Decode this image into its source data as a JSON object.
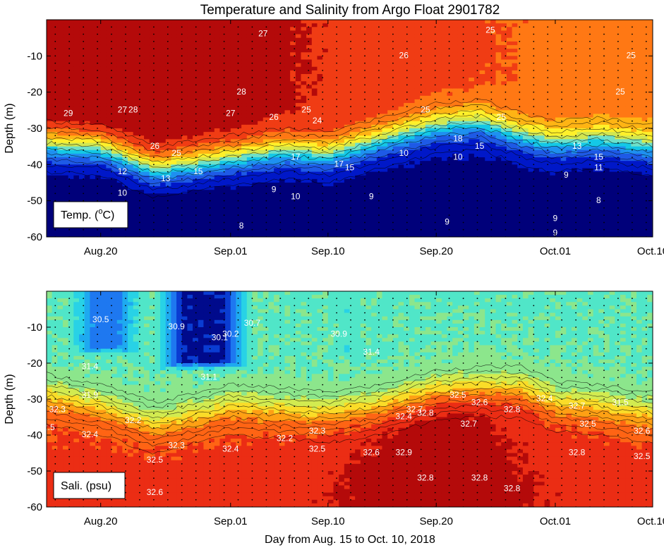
{
  "chart_data": {
    "title": "Temperature and Salinity from Argo Float 2901782",
    "xlabel": "Day from Aug. 15 to Oct. 10, 2018",
    "type": "heatmap",
    "x_range": [
      "2018-08-15",
      "2018-10-10"
    ],
    "x_ticks": [
      {
        "date": "2018-08-20",
        "label": "Aug.20"
      },
      {
        "date": "2018-09-01",
        "label": "Sep.01"
      },
      {
        "date": "2018-09-10",
        "label": "Sep.10"
      },
      {
        "date": "2018-09-20",
        "label": "Sep.20"
      },
      {
        "date": "2018-10-01",
        "label": "Oct.01"
      },
      {
        "date": "2018-10-10",
        "label": "Oct.10"
      }
    ],
    "panels": [
      {
        "id": "temperature",
        "panel_label": "Temp. (oC)",
        "panel_label_parts": [
          "Temp. (",
          "o",
          "C)"
        ],
        "ylabel": "Depth (m)",
        "ylim": [
          -60,
          0
        ],
        "y_ticks": [
          -10,
          -20,
          -30,
          -40,
          -50,
          -60
        ],
        "y_tick_labels": [
          "-10",
          "-20",
          "-30",
          "-40",
          "-50",
          "-60"
        ],
        "colors": [
          "#00007a",
          "#0018c8",
          "#1e5ae6",
          "#1e90f0",
          "#14c8e6",
          "#6ee0c8",
          "#d2e650",
          "#fff02a",
          "#ffb414",
          "#ff7814",
          "#f03c14",
          "#b40a0a"
        ],
        "value_range": [
          8,
          29.5
        ],
        "thermocline_depth": [
          {
            "date": "2018-08-15",
            "depth": -34
          },
          {
            "date": "2018-08-20",
            "depth": -35
          },
          {
            "date": "2018-08-25",
            "depth": -41
          },
          {
            "date": "2018-09-01",
            "depth": -38
          },
          {
            "date": "2018-09-06",
            "depth": -36
          },
          {
            "date": "2018-09-10",
            "depth": -37
          },
          {
            "date": "2018-09-15",
            "depth": -33
          },
          {
            "date": "2018-09-20",
            "depth": -29
          },
          {
            "date": "2018-09-24",
            "depth": -28
          },
          {
            "date": "2018-09-28",
            "depth": -32
          },
          {
            "date": "2018-10-01",
            "depth": -34
          },
          {
            "date": "2018-10-05",
            "depth": -33
          },
          {
            "date": "2018-10-10",
            "depth": -35
          }
        ],
        "surface_temperature": [
          {
            "date": "2018-08-15",
            "value": 29.5
          },
          {
            "date": "2018-08-25",
            "value": 29
          },
          {
            "date": "2018-09-01",
            "value": 28.5
          },
          {
            "date": "2018-09-10",
            "value": 27.5
          },
          {
            "date": "2018-09-20",
            "value": 26.5
          },
          {
            "date": "2018-10-01",
            "value": 25.5
          },
          {
            "date": "2018-10-10",
            "value": 25
          }
        ],
        "contour_labels": [
          {
            "date": "2018-09-04",
            "depth": -4,
            "text": "27"
          },
          {
            "date": "2018-09-17",
            "depth": -10,
            "text": "26"
          },
          {
            "date": "2018-09-25",
            "depth": -3,
            "text": "25"
          },
          {
            "date": "2018-10-08",
            "depth": -10,
            "text": "25"
          },
          {
            "date": "2018-10-07",
            "depth": -20,
            "text": "25"
          },
          {
            "date": "2018-08-17",
            "depth": -26,
            "text": "29"
          },
          {
            "date": "2018-08-22",
            "depth": -25,
            "text": "27"
          },
          {
            "date": "2018-08-23",
            "depth": -25,
            "text": "28"
          },
          {
            "date": "2018-09-02",
            "depth": -20,
            "text": "28"
          },
          {
            "date": "2018-09-01",
            "depth": -26,
            "text": "27"
          },
          {
            "date": "2018-09-05",
            "depth": -27,
            "text": "26"
          },
          {
            "date": "2018-09-08",
            "depth": -25,
            "text": "25"
          },
          {
            "date": "2018-09-09",
            "depth": -28,
            "text": "24"
          },
          {
            "date": "2018-09-19",
            "depth": -25,
            "text": "25"
          },
          {
            "date": "2018-09-26",
            "depth": -27,
            "text": "25"
          },
          {
            "date": "2018-08-25",
            "depth": -35,
            "text": "26"
          },
          {
            "date": "2018-08-27",
            "depth": -37,
            "text": "25"
          },
          {
            "date": "2018-08-29",
            "depth": -42,
            "text": "15"
          },
          {
            "date": "2018-08-26",
            "depth": -44,
            "text": "13"
          },
          {
            "date": "2018-08-22",
            "depth": -42,
            "text": "12"
          },
          {
            "date": "2018-08-22",
            "depth": -48,
            "text": "10"
          },
          {
            "date": "2018-08-20",
            "depth": -52,
            "text": "9"
          },
          {
            "date": "2018-08-21",
            "depth": -54,
            "text": "8"
          },
          {
            "date": "2018-09-07",
            "depth": -38,
            "text": "17"
          },
          {
            "date": "2018-09-11",
            "depth": -40,
            "text": "17"
          },
          {
            "date": "2018-09-12",
            "depth": -41,
            "text": "15"
          },
          {
            "date": "2018-09-17",
            "depth": -37,
            "text": "10"
          },
          {
            "date": "2018-09-05",
            "depth": -47,
            "text": "9"
          },
          {
            "date": "2018-09-07",
            "depth": -49,
            "text": "10"
          },
          {
            "date": "2018-09-14",
            "depth": -49,
            "text": "9"
          },
          {
            "date": "2018-09-02",
            "depth": -57,
            "text": "8"
          },
          {
            "date": "2018-09-22",
            "depth": -33,
            "text": "18"
          },
          {
            "date": "2018-09-24",
            "depth": -35,
            "text": "15"
          },
          {
            "date": "2018-09-22",
            "depth": -38,
            "text": "10"
          },
          {
            "date": "2018-09-21",
            "depth": -56,
            "text": "9"
          },
          {
            "date": "2018-10-03",
            "depth": -35,
            "text": "13"
          },
          {
            "date": "2018-10-05",
            "depth": -38,
            "text": "15"
          },
          {
            "date": "2018-10-05",
            "depth": -41,
            "text": "11"
          },
          {
            "date": "2018-10-02",
            "depth": -43,
            "text": "9"
          },
          {
            "date": "2018-10-05",
            "depth": -50,
            "text": "8"
          },
          {
            "date": "2018-10-01",
            "depth": -55,
            "text": "9"
          },
          {
            "date": "2018-10-01",
            "depth": -59,
            "text": "9"
          }
        ]
      },
      {
        "id": "salinity",
        "panel_label": "Sali. (psu)",
        "ylabel": "Depth (m)",
        "ylim": [
          -60,
          0
        ],
        "y_ticks": [
          -10,
          -20,
          -30,
          -40,
          -50,
          -60
        ],
        "y_tick_labels": [
          "-10",
          "-20",
          "-30",
          "-40",
          "-50",
          "-60"
        ],
        "colors": [
          "#000a8c",
          "#0a3cd2",
          "#1e78f0",
          "#1eaaf0",
          "#28d2e6",
          "#50e6c8",
          "#8ce68c",
          "#d2eb50",
          "#fadc28",
          "#ffa014",
          "#ff6414",
          "#eb2d14",
          "#b40a0a"
        ],
        "value_range": [
          29.8,
          33.0
        ],
        "halocline_depth": [
          {
            "date": "2018-08-15",
            "depth": -29
          },
          {
            "date": "2018-08-20",
            "depth": -32
          },
          {
            "date": "2018-08-25",
            "depth": -37
          },
          {
            "date": "2018-09-01",
            "depth": -32
          },
          {
            "date": "2018-09-06",
            "depth": -33
          },
          {
            "date": "2018-09-10",
            "depth": -34
          },
          {
            "date": "2018-09-15",
            "depth": -32
          },
          {
            "date": "2018-09-20",
            "depth": -28
          },
          {
            "date": "2018-09-24",
            "depth": -27
          },
          {
            "date": "2018-09-28",
            "depth": -27
          },
          {
            "date": "2018-10-01",
            "depth": -31
          },
          {
            "date": "2018-10-05",
            "depth": -32
          },
          {
            "date": "2018-10-10",
            "depth": -34
          }
        ],
        "fresh_lenses": [
          {
            "date_start": "2018-08-17",
            "date_end": "2018-08-24",
            "depth_bottom": -18,
            "value": 30.4
          },
          {
            "date_start": "2018-08-25",
            "date_end": "2018-09-03",
            "depth_bottom": -22,
            "value": 30.0
          },
          {
            "date_start": "2018-09-11",
            "date_end": "2018-09-13",
            "depth_bottom": -18,
            "value": 30.7
          }
        ],
        "contour_labels": [
          {
            "date": "2018-08-20",
            "depth": -8,
            "text": "30.5"
          },
          {
            "date": "2018-08-27",
            "depth": -10,
            "text": "30.9"
          },
          {
            "date": "2018-08-31",
            "depth": -13,
            "text": "30.1"
          },
          {
            "date": "2018-09-01",
            "depth": -12,
            "text": "30.2"
          },
          {
            "date": "2018-09-03",
            "depth": -9,
            "text": "30.7"
          },
          {
            "date": "2018-09-11",
            "depth": -12,
            "text": "30.9"
          },
          {
            "date": "2018-09-14",
            "depth": -17,
            "text": "31.4"
          },
          {
            "date": "2018-08-19",
            "depth": -21,
            "text": "31.4"
          },
          {
            "date": "2018-08-30",
            "depth": -24,
            "text": "31.1"
          },
          {
            "date": "2018-08-19",
            "depth": -29,
            "text": "31.9"
          },
          {
            "date": "2018-08-16",
            "depth": -33,
            "text": "32.3"
          },
          {
            "date": "2018-08-15",
            "depth": -38,
            "text": "32.5"
          },
          {
            "date": "2018-08-19",
            "depth": -40,
            "text": "32.4"
          },
          {
            "date": "2018-08-23",
            "depth": -36,
            "text": "32.2"
          },
          {
            "date": "2018-08-27",
            "depth": -43,
            "text": "32.3"
          },
          {
            "date": "2018-08-25",
            "depth": -47,
            "text": "32.5"
          },
          {
            "date": "2018-09-01",
            "depth": -44,
            "text": "32.4"
          },
          {
            "date": "2018-09-06",
            "depth": -41,
            "text": "32.2"
          },
          {
            "date": "2018-09-09",
            "depth": -39,
            "text": "32.3"
          },
          {
            "date": "2018-09-09",
            "depth": -44,
            "text": "32.5"
          },
          {
            "date": "2018-09-14",
            "depth": -45,
            "text": "32.6"
          },
          {
            "date": "2018-09-17",
            "depth": -35,
            "text": "32.4"
          },
          {
            "date": "2018-09-18",
            "depth": -33,
            "text": "32.7"
          },
          {
            "date": "2018-09-19",
            "depth": -34,
            "text": "32.8"
          },
          {
            "date": "2018-09-22",
            "depth": -29,
            "text": "32.5"
          },
          {
            "date": "2018-09-23",
            "depth": -37,
            "text": "32.7"
          },
          {
            "date": "2018-09-17",
            "depth": -45,
            "text": "32.9"
          },
          {
            "date": "2018-09-19",
            "depth": -52,
            "text": "32.8"
          },
          {
            "date": "2018-09-24",
            "depth": -31,
            "text": "32.6"
          },
          {
            "date": "2018-09-27",
            "depth": -33,
            "text": "32.8"
          },
          {
            "date": "2018-09-30",
            "depth": -30,
            "text": "32.4"
          },
          {
            "date": "2018-10-03",
            "depth": -32,
            "text": "32.7"
          },
          {
            "date": "2018-10-04",
            "depth": -37,
            "text": "32.5"
          },
          {
            "date": "2018-10-07",
            "depth": -31,
            "text": "31.5"
          },
          {
            "date": "2018-10-09",
            "depth": -39,
            "text": "32.6"
          },
          {
            "date": "2018-10-09",
            "depth": -46,
            "text": "32.5"
          },
          {
            "date": "2018-10-03",
            "depth": -45,
            "text": "32.8"
          },
          {
            "date": "2018-09-24",
            "depth": -52,
            "text": "32.8"
          },
          {
            "date": "2018-09-27",
            "depth": -55,
            "text": "32.8"
          },
          {
            "date": "2018-08-25",
            "depth": -56,
            "text": "32.6"
          }
        ]
      }
    ]
  }
}
